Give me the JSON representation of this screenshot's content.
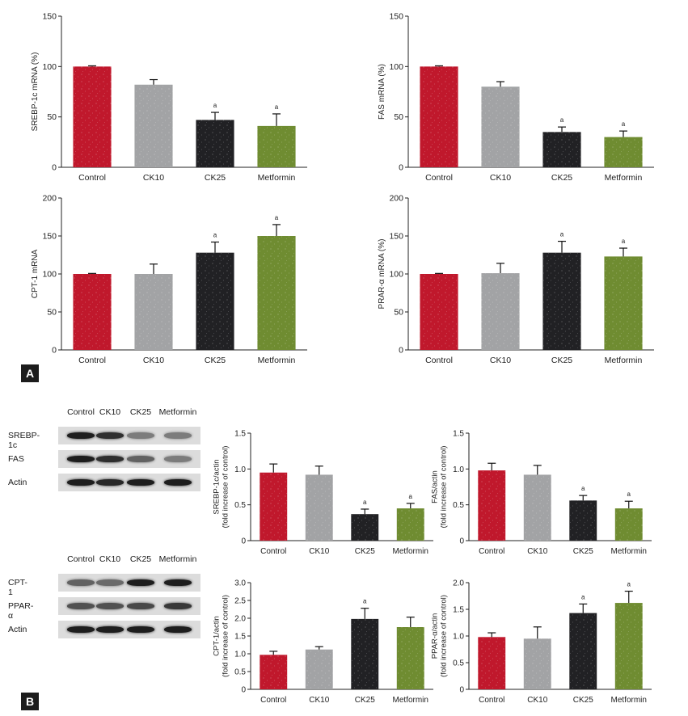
{
  "figure": {
    "panel_a_label": "A",
    "panel_b_label": "B",
    "significance_marker": "a",
    "colors": {
      "Control": "#c0182c",
      "CK10": "#a2a3a5",
      "CK25": "#212124",
      "Metformin": "#6f8c31",
      "axis": "#222222"
    }
  },
  "blot_top": {
    "lanes": [
      "Control",
      "CK10",
      "CK25",
      "Metformin"
    ],
    "rows": [
      {
        "label": "SREBP-1c",
        "band_intensity": [
          1.0,
          0.9,
          0.45,
          0.45
        ]
      },
      {
        "label": "FAS",
        "band_intensity": [
          1.0,
          0.9,
          0.6,
          0.45
        ]
      },
      {
        "label": "Actin",
        "band_intensity": [
          1.0,
          0.95,
          1.0,
          1.0
        ]
      }
    ]
  },
  "blot_bottom": {
    "lanes": [
      "Control",
      "CK10",
      "CK25",
      "Metformin"
    ],
    "rows": [
      {
        "label": "CPT-1",
        "band_intensity": [
          0.6,
          0.55,
          1.0,
          1.0
        ]
      },
      {
        "label": "PPAR-α",
        "band_intensity": [
          0.7,
          0.7,
          0.75,
          0.85
        ]
      },
      {
        "label": "Actin",
        "band_intensity": [
          1.0,
          1.0,
          1.0,
          1.0
        ]
      }
    ]
  },
  "chart_data": [
    {
      "type": "bar",
      "panel": "A",
      "categories": [
        "Control",
        "CK10",
        "CK25",
        "Metformin"
      ],
      "values": [
        100,
        82,
        47,
        41
      ],
      "errors": [
        0.7,
        5,
        7.5,
        12
      ],
      "significant": [
        false,
        false,
        true,
        true
      ],
      "ylabel": "SREBP-1c mRNA (%)",
      "ylabel_lines": [
        "SREBP-1c mRNA (%)"
      ],
      "ylim": [
        0,
        150
      ],
      "yticks": [
        0,
        50,
        100,
        150
      ],
      "ytick_labels": [
        "0",
        "50",
        "100",
        "150"
      ]
    },
    {
      "type": "bar",
      "panel": "A",
      "categories": [
        "Control",
        "CK10",
        "CK25",
        "Metformin"
      ],
      "values": [
        100,
        80,
        35,
        30
      ],
      "errors": [
        0.7,
        5,
        5,
        6
      ],
      "significant": [
        false,
        false,
        true,
        true
      ],
      "ylabel": "FAS mRNA (%)",
      "ylabel_lines": [
        "FAS mRNA (%)"
      ],
      "ylim": [
        0,
        150
      ],
      "yticks": [
        0,
        50,
        100,
        150
      ],
      "ytick_labels": [
        "0",
        "50",
        "100",
        "150"
      ]
    },
    {
      "type": "bar",
      "panel": "A",
      "categories": [
        "Control",
        "CK10",
        "CK25",
        "Metformin"
      ],
      "values": [
        100,
        100,
        128,
        150
      ],
      "errors": [
        0.7,
        13,
        14,
        15
      ],
      "significant": [
        false,
        false,
        true,
        true
      ],
      "ylabel": "CPT-1 mRNA",
      "ylabel_lines": [
        "CPT-1 mRNA"
      ],
      "ylim": [
        0,
        200
      ],
      "yticks": [
        0,
        50,
        100,
        150,
        200
      ],
      "ytick_labels": [
        "0",
        "50",
        "100",
        "150",
        "200"
      ]
    },
    {
      "type": "bar",
      "panel": "A",
      "categories": [
        "Control",
        "CK10",
        "CK25",
        "Metformin"
      ],
      "values": [
        100,
        101,
        128,
        123
      ],
      "errors": [
        0.7,
        13,
        15,
        11
      ],
      "significant": [
        false,
        false,
        true,
        true
      ],
      "ylabel": "PRAR-α mRNA (%)",
      "ylabel_lines": [
        "PRAR-α mRNA (%)"
      ],
      "ylim": [
        0,
        200
      ],
      "yticks": [
        0,
        50,
        100,
        150,
        200
      ],
      "ytick_labels": [
        "0",
        "50",
        "100",
        "150",
        "200"
      ]
    },
    {
      "type": "bar",
      "panel": "B",
      "categories": [
        "Control",
        "CK10",
        "CK25",
        "Metformin"
      ],
      "values": [
        0.95,
        0.92,
        0.37,
        0.45
      ],
      "errors": [
        0.12,
        0.12,
        0.07,
        0.07
      ],
      "significant": [
        false,
        false,
        true,
        true
      ],
      "ylabel": "SREBP-1c/actin (fold increase of control)",
      "ylabel_lines": [
        "SREBP-1c/actin",
        "(fold increase of control)"
      ],
      "ylim": [
        0,
        1.5
      ],
      "yticks": [
        0,
        0.5,
        1.0,
        1.5
      ],
      "ytick_labels": [
        "0",
        "0.5",
        "1.0",
        "1.5"
      ]
    },
    {
      "type": "bar",
      "panel": "B",
      "categories": [
        "Control",
        "CK10",
        "CK25",
        "Metformin"
      ],
      "values": [
        0.98,
        0.92,
        0.56,
        0.45
      ],
      "errors": [
        0.1,
        0.13,
        0.07,
        0.1
      ],
      "significant": [
        false,
        false,
        true,
        true
      ],
      "ylabel": "FAS/actin (fold increase of control)",
      "ylabel_lines": [
        "FAS/actin",
        "(fold increase of control)"
      ],
      "ylim": [
        0,
        1.5
      ],
      "yticks": [
        0,
        0.5,
        1.0,
        1.5
      ],
      "ytick_labels": [
        "0",
        "0.5",
        "1.0",
        "1.5"
      ]
    },
    {
      "type": "bar",
      "panel": "B",
      "categories": [
        "Control",
        "CK10",
        "CK25",
        "Metformin"
      ],
      "values": [
        0.97,
        1.12,
        1.98,
        1.75
      ],
      "errors": [
        0.1,
        0.08,
        0.3,
        0.28
      ],
      "significant": [
        false,
        false,
        true,
        false
      ],
      "ylabel": "CPT-1/actin (fold increase of control)",
      "ylabel_lines": [
        "CPT-1/actin",
        "(fold increase of control)"
      ],
      "ylim": [
        0,
        3.0
      ],
      "yticks": [
        0,
        0.5,
        1.0,
        1.5,
        2.0,
        2.5,
        3.0
      ],
      "ytick_labels": [
        "0",
        "0.5",
        "1.0",
        "1.5",
        "2.0",
        "2.5",
        "3.0"
      ]
    },
    {
      "type": "bar",
      "panel": "B",
      "categories": [
        "Control",
        "CK10",
        "CK25",
        "Metformin"
      ],
      "values": [
        0.98,
        0.95,
        1.43,
        1.62
      ],
      "errors": [
        0.08,
        0.22,
        0.17,
        0.22
      ],
      "significant": [
        false,
        false,
        true,
        true
      ],
      "ylabel": "PPAR-α/actin (fold increase of control)",
      "ylabel_lines": [
        "PPAR-α/actin",
        "(fold increase of control)"
      ],
      "ylim": [
        0,
        2.0
      ],
      "yticks": [
        0,
        0.5,
        1.0,
        1.5,
        2.0
      ],
      "ytick_labels": [
        "0",
        "0.5",
        "1.0",
        "1.5",
        "2.0"
      ]
    }
  ]
}
